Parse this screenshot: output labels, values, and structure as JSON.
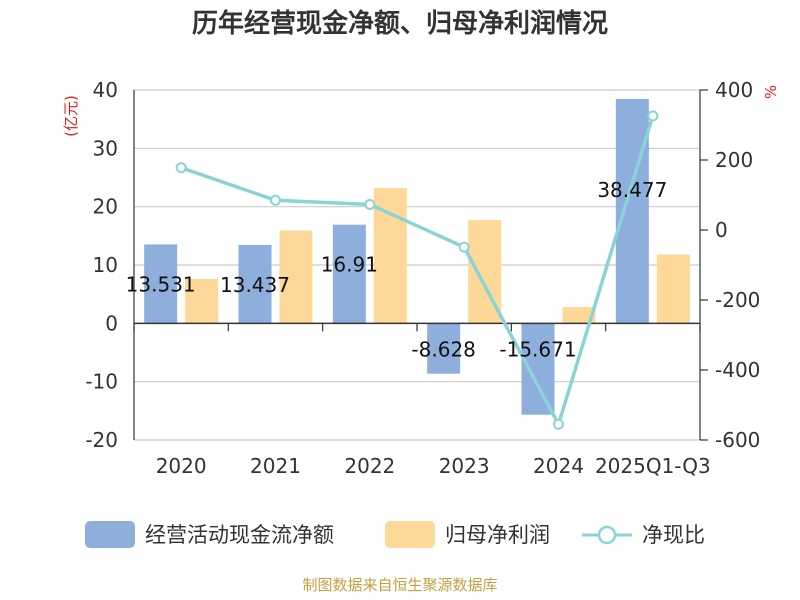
{
  "chart_data": {
    "type": "bar+line",
    "title": "历年经营现金净额、归母净利润情况",
    "categories": [
      "2020",
      "2021",
      "2022",
      "2023",
      "2024",
      "2025Q1-Q3"
    ],
    "series": [
      {
        "name": "经营活动现金流净额",
        "type": "bar",
        "axis": "left",
        "color": "#8eaedc",
        "values": [
          13.531,
          13.437,
          16.91,
          -8.628,
          -15.671,
          38.477
        ],
        "labels": [
          "13.531",
          "13.437",
          "16.91",
          "-8.628",
          "-15.671",
          "38.477"
        ]
      },
      {
        "name": "归母净利润",
        "type": "bar",
        "axis": "left",
        "color": "#fdd898",
        "values": [
          7.6,
          15.9,
          23.2,
          17.7,
          2.8,
          11.8
        ]
      },
      {
        "name": "净现比",
        "type": "line",
        "axis": "right",
        "color": "#8ad3d6",
        "values": [
          178,
          85,
          73,
          -49,
          -555,
          326
        ]
      }
    ],
    "y_left": {
      "unit": "(亿元)",
      "min": -20,
      "max": 40,
      "ticks": [
        -20,
        -10,
        0,
        10,
        20,
        30,
        40
      ]
    },
    "y_right": {
      "unit": "%",
      "min": -600,
      "max": 400,
      "ticks": [
        -600,
        -400,
        -200,
        0,
        200,
        400
      ]
    },
    "grid": true,
    "legend_position": "bottom",
    "source": "制图数据来自恒生聚源数据库"
  }
}
